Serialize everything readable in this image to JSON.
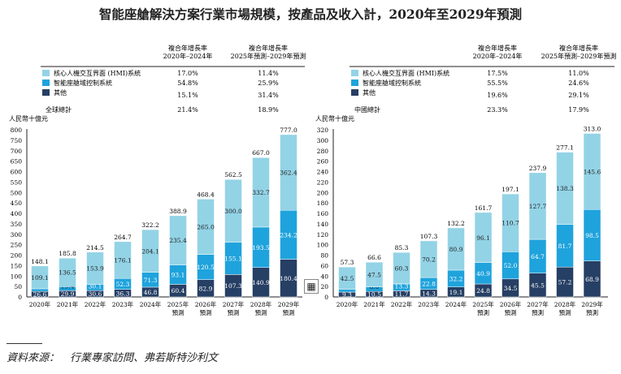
{
  "title": "智能座艙解決方案行業市場規模，按產品及收入計，2020年至2029年預測",
  "source": "資料來源：　行業專家訪問、弗若斯特沙利文",
  "colors": {
    "hmi": "#93d3e6",
    "domain": "#1fa3dc",
    "other": "#263f64"
  },
  "chart_data": [
    {
      "type": "bar",
      "stacked": true,
      "title": "",
      "ylabel": "人民幣十億元",
      "ylim": [
        0,
        800
      ],
      "yticks": [
        0,
        50,
        100,
        150,
        200,
        250,
        300,
        350,
        400,
        450,
        500,
        550,
        600,
        650,
        700,
        750,
        800
      ],
      "categories": [
        "2020年",
        "2021年",
        "2022年",
        "2023年",
        "2024年",
        "2025年\n預測",
        "2026年\n預測",
        "2027年\n預測",
        "2028年\n預測",
        "2029年\n預測"
      ],
      "cagr_headers": [
        "複合年增長率\n2020年–2024年",
        "複合年增長率\n2025年預測–2029年預測"
      ],
      "series": [
        {
          "name": "其他",
          "color": "#263f64",
          "values": [
            26.6,
            29.9,
            30.6,
            36.3,
            46.8,
            60.4,
            82.9,
            107.3,
            140.9,
            180.4
          ],
          "cagr": [
            "15.1%",
            "31.4%"
          ]
        },
        {
          "name": "智能座艙域控制系統",
          "color": "#1fa3dc",
          "values": [
            12.4,
            19.4,
            30.1,
            52.3,
            71.3,
            93.1,
            120.5,
            155.1,
            193.5,
            234.2
          ],
          "cagr": [
            "54.8%",
            "25.9%"
          ]
        },
        {
          "name": "核心人機交互界面 (HMI)系統",
          "color": "#93d3e6",
          "values": [
            109.1,
            136.5,
            153.9,
            176.1,
            204.1,
            235.4,
            265.0,
            300.0,
            332.7,
            362.4
          ],
          "cagr": [
            "17.0%",
            "11.4%"
          ]
        }
      ],
      "totals": [
        148.1,
        185.8,
        214.5,
        264.7,
        322.2,
        388.9,
        468.4,
        562.5,
        667.0,
        777.0
      ],
      "total_label": "全球總計",
      "total_cagr": [
        "21.4%",
        "18.9%"
      ]
    },
    {
      "type": "bar",
      "stacked": true,
      "title": "",
      "ylabel": "人民幣十億元",
      "ylim": [
        0,
        320
      ],
      "yticks": [
        0,
        20,
        40,
        60,
        80,
        100,
        120,
        140,
        160,
        180,
        200,
        220,
        240,
        260,
        280,
        300,
        320
      ],
      "categories": [
        "2020年",
        "2021年",
        "2022年",
        "2023年",
        "2024年",
        "2025年\n預測",
        "2026年\n預測",
        "2027年\n預測",
        "2028年\n預測",
        "2029年\n預測"
      ],
      "cagr_headers": [
        "複合年增長率\n2020年–2024年",
        "複合年增長率\n2025年預測–2029年預測"
      ],
      "series": [
        {
          "name": "其他",
          "color": "#263f64",
          "values": [
            9.3,
            10.5,
            11.7,
            14.3,
            19.1,
            24.8,
            34.5,
            45.5,
            57.2,
            68.9
          ],
          "cagr": [
            "19.6%",
            "29.1%"
          ]
        },
        {
          "name": "智能座艙域控制系統",
          "color": "#1fa3dc",
          "values": [
            5.5,
            8.6,
            13.3,
            22.8,
            32.2,
            40.9,
            52.0,
            64.7,
            81.7,
            98.5
          ],
          "cagr": [
            "55.5%",
            "24.6%"
          ]
        },
        {
          "name": "核心人機交互界面 (HMI)系統",
          "color": "#93d3e6",
          "values": [
            42.5,
            47.5,
            60.3,
            70.2,
            80.9,
            96.1,
            110.7,
            127.7,
            138.3,
            145.6
          ],
          "cagr": [
            "17.5%",
            "11.0%"
          ]
        }
      ],
      "totals": [
        57.3,
        66.6,
        85.3,
        107.3,
        132.2,
        161.7,
        197.1,
        237.9,
        277.1,
        313.0
      ],
      "total_label": "中國總計",
      "total_cagr": [
        "23.3%",
        "17.9%"
      ]
    }
  ]
}
